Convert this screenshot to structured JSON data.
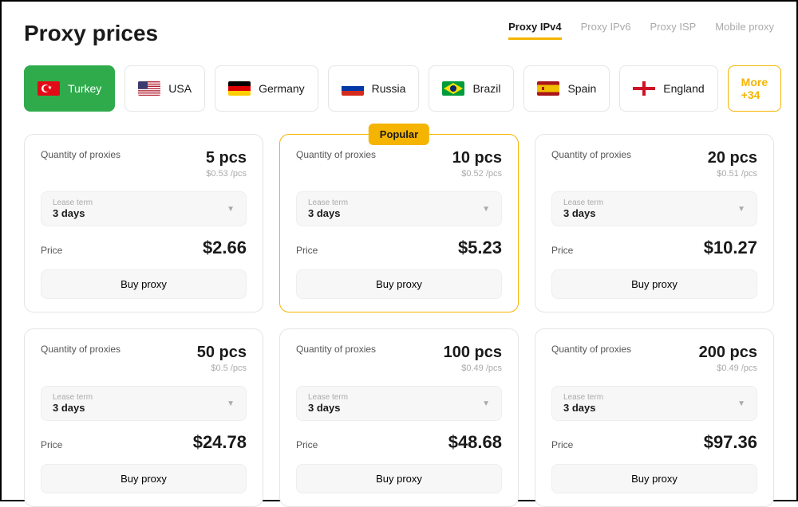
{
  "title": "Proxy prices",
  "tabs": [
    {
      "label": "Proxy IPv4",
      "active": true
    },
    {
      "label": "Proxy IPv6",
      "active": false
    },
    {
      "label": "Proxy ISP",
      "active": false
    },
    {
      "label": "Mobile proxy",
      "active": false
    }
  ],
  "countries": [
    {
      "name": "Turkey",
      "flag_svg": "<rect width='28' height='18' fill='#e30a17'/><circle cx='10' cy='9' r='5' fill='#fff'/><circle cx='11.5' cy='9' r='4' fill='#e30a17'/><polygon points='15,9 17,10 16.3,8 17.8,6.8 16,6.8 15,5 14.7,6.8 13,6.8 14.5,8 14,10' fill='#fff'/>",
      "selected": true
    },
    {
      "name": "USA",
      "flag_svg": "<rect width='28' height='18' fill='#b22234'/><rect y='1.4' width='28' height='1.4' fill='#fff'/><rect y='4.2' width='28' height='1.4' fill='#fff'/><rect y='7' width='28' height='1.4' fill='#fff'/><rect y='9.8' width='28' height='1.4' fill='#fff'/><rect y='12.6' width='28' height='1.4' fill='#fff'/><rect y='15.4' width='28' height='1.4' fill='#fff'/><rect width='12' height='9.7' fill='#3c3b6e'/>",
      "selected": false
    },
    {
      "name": "Germany",
      "flag_svg": "<rect width='28' height='6' fill='#000'/><rect y='6' width='28' height='6' fill='#dd0000'/><rect y='12' width='28' height='6' fill='#ffce00'/>",
      "selected": false
    },
    {
      "name": "Russia",
      "flag_svg": "<rect width='28' height='6' fill='#fff'/><rect y='6' width='28' height='6' fill='#0039a6'/><rect y='12' width='28' height='6' fill='#d52b1e'/>",
      "selected": false
    },
    {
      "name": "Brazil",
      "flag_svg": "<rect width='28' height='18' fill='#009c3b'/><polygon points='14,2 26,9 14,16 2,9' fill='#ffdf00'/><circle cx='14' cy='9' r='4' fill='#002776'/>",
      "selected": false
    },
    {
      "name": "Spain",
      "flag_svg": "<rect width='28' height='18' fill='#aa151b'/><rect y='4.5' width='28' height='9' fill='#f1bf00'/><rect x='6' y='7' width='3' height='4' fill='#aa151b'/>",
      "selected": false
    },
    {
      "name": "England",
      "flag_svg": "<rect width='28' height='18' fill='#fff'/><rect x='12' width='4' height='18' fill='#ce1124'/><rect y='7' width='28' height='4' fill='#ce1124'/>",
      "selected": false
    }
  ],
  "more_label": "More +34",
  "labels": {
    "qty": "Quantity of proxies",
    "lease": "Lease term",
    "price": "Price",
    "buy": "Buy proxy",
    "popular": "Popular"
  },
  "plans": [
    {
      "qty": "5 pcs",
      "per": "$0.53 /pcs",
      "term": "3 days",
      "price": "$2.66",
      "featured": false
    },
    {
      "qty": "10 pcs",
      "per": "$0.52 /pcs",
      "term": "3 days",
      "price": "$5.23",
      "featured": true
    },
    {
      "qty": "20 pcs",
      "per": "$0.51 /pcs",
      "term": "3 days",
      "price": "$10.27",
      "featured": false
    },
    {
      "qty": "50 pcs",
      "per": "$0.5 /pcs",
      "term": "3 days",
      "price": "$24.78",
      "featured": false
    },
    {
      "qty": "100 pcs",
      "per": "$0.49 /pcs",
      "term": "3 days",
      "price": "$48.68",
      "featured": false
    },
    {
      "qty": "200 pcs",
      "per": "$0.49 /pcs",
      "term": "3 days",
      "price": "$97.36",
      "featured": false
    }
  ],
  "colors": {
    "accent_green": "#2fab4c",
    "accent_yellow": "#f5b400",
    "border": "#e5e5e5",
    "muted": "#aaaaaa"
  }
}
